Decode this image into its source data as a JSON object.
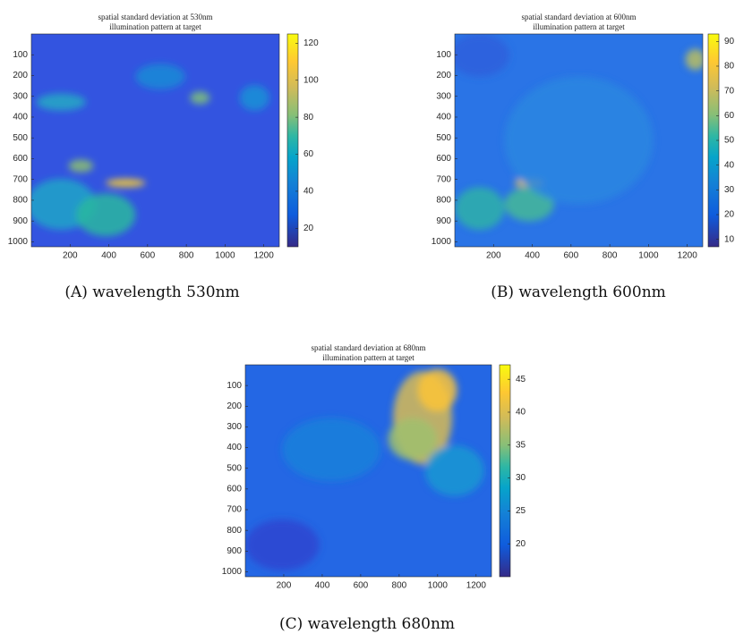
{
  "chart_data": [
    {
      "type": "heatmap",
      "title": "spatial standard deviation at 530nm",
      "subtitle": "illumination pattern at target",
      "caption": "(A) wavelength 530nm",
      "xlim": [
        0,
        1280
      ],
      "xticks": [
        200,
        400,
        600,
        800,
        1000,
        1200
      ],
      "ylim": [
        0,
        1024
      ],
      "yticks": [
        100,
        200,
        300,
        400,
        500,
        600,
        700,
        800,
        900,
        1000
      ],
      "y_reversed": true,
      "colormap": "parula",
      "clim": [
        10,
        125
      ],
      "cticks": [
        20,
        40,
        60,
        80,
        100,
        120
      ]
    },
    {
      "type": "heatmap",
      "title": "spatial standard deviation at 600nm",
      "subtitle": "illumination pattern at target",
      "caption": "(B) wavelength 600nm",
      "xlim": [
        0,
        1280
      ],
      "xticks": [
        200,
        400,
        600,
        800,
        1000,
        1200
      ],
      "ylim": [
        0,
        1024
      ],
      "yticks": [
        100,
        200,
        300,
        400,
        500,
        600,
        700,
        800,
        900,
        1000
      ],
      "y_reversed": true,
      "colormap": "parula",
      "clim": [
        7,
        93
      ],
      "cticks": [
        10,
        20,
        30,
        40,
        50,
        60,
        70,
        80,
        90
      ]
    },
    {
      "type": "heatmap",
      "title": "spatial standard deviation at 680nm",
      "subtitle": "illumination pattern at target",
      "caption": "(C) wavelength 680nm",
      "xlim": [
        0,
        1280
      ],
      "xticks": [
        200,
        400,
        600,
        800,
        1000,
        1200
      ],
      "ylim": [
        0,
        1024
      ],
      "yticks": [
        100,
        200,
        300,
        400,
        500,
        600,
        700,
        800,
        900,
        1000
      ],
      "y_reversed": true,
      "colormap": "parula",
      "clim": [
        15,
        47.2
      ],
      "cticks": [
        20,
        25,
        30,
        35,
        40,
        45
      ]
    }
  ]
}
